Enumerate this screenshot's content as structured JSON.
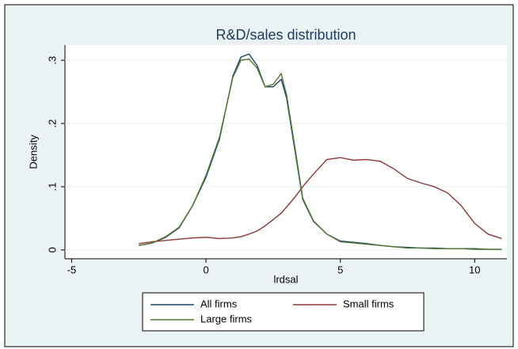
{
  "chart_data": {
    "type": "line",
    "title": "R&D/sales distribution",
    "x_label": "lrdsal",
    "y_label": "Density",
    "x": [
      -2.5,
      -2,
      -1.5,
      -1,
      -0.5,
      0,
      0.5,
      1,
      1.3,
      1.6,
      1.9,
      2.2,
      2.5,
      2.8,
      3,
      3.3,
      3.6,
      4,
      4.5,
      5,
      5.5,
      6,
      6.5,
      7,
      7.5,
      8,
      8.5,
      9,
      9.5,
      10,
      10.5,
      11
    ],
    "series": [
      {
        "name": "All firms",
        "color": "#1a476f",
        "values": [
          0.007,
          0.011,
          0.02,
          0.035,
          0.07,
          0.115,
          0.175,
          0.275,
          0.305,
          0.31,
          0.292,
          0.258,
          0.258,
          0.27,
          0.24,
          0.16,
          0.08,
          0.045,
          0.025,
          0.014,
          0.012,
          0.01,
          0.007,
          0.005,
          0.004,
          0.003,
          0.003,
          0.002,
          0.002,
          0.002,
          0.001,
          0.001
        ]
      },
      {
        "name": "Small firms",
        "color": "#90353b",
        "values": [
          0.01,
          0.013,
          0.015,
          0.017,
          0.019,
          0.02,
          0.018,
          0.019,
          0.021,
          0.025,
          0.03,
          0.038,
          0.048,
          0.058,
          0.068,
          0.083,
          0.1,
          0.12,
          0.143,
          0.146,
          0.142,
          0.143,
          0.14,
          0.128,
          0.113,
          0.106,
          0.1,
          0.09,
          0.07,
          0.042,
          0.025,
          0.018
        ]
      },
      {
        "name": "Large firms",
        "color": "#55752f",
        "values": [
          0.007,
          0.011,
          0.021,
          0.036,
          0.07,
          0.118,
          0.178,
          0.273,
          0.3,
          0.302,
          0.288,
          0.258,
          0.262,
          0.279,
          0.245,
          0.165,
          0.082,
          0.046,
          0.025,
          0.013,
          0.011,
          0.009,
          0.007,
          0.005,
          0.003,
          0.003,
          0.002,
          0.002,
          0.002,
          0.001,
          0.001,
          0.001
        ]
      }
    ],
    "xlim": [
      -5.25,
      11.2
    ],
    "xticks": [
      -5,
      0,
      5,
      10
    ],
    "ylim": [
      -0.014,
      0.324
    ],
    "yticks": [
      0,
      {
        "value": 0.1,
        "label": ".1"
      },
      {
        "value": 0.2,
        "label": ".2"
      },
      {
        "value": 0.3,
        "label": ".3"
      }
    ],
    "grid": true
  }
}
